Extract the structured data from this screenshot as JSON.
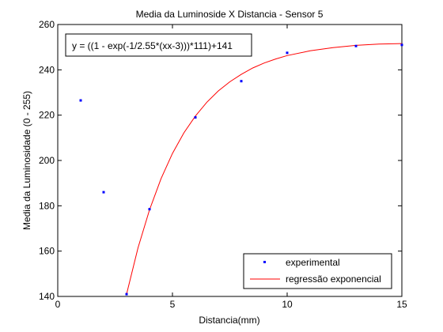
{
  "chart_data": {
    "type": "scatter",
    "title": "Media da Luminoside X Distancia - Sensor 5",
    "xlabel": "Distancia(mm)",
    "ylabel": "Media da Luminosidade (0 - 255)",
    "xlim": [
      0,
      15
    ],
    "ylim": [
      140,
      260
    ],
    "xticks": [
      0,
      5,
      10,
      15
    ],
    "yticks": [
      140,
      160,
      180,
      200,
      220,
      240,
      260
    ],
    "grid": false,
    "legend_position": "bottom-right",
    "annotation": "y = ((1 - exp(-1/2.55*(xx-3)))*111)+141",
    "series": [
      {
        "name": "experimental",
        "kind": "points",
        "color": "#0000ff",
        "x": [
          1,
          2,
          3,
          4,
          6,
          8,
          10,
          13,
          15
        ],
        "y": [
          226.5,
          186,
          141,
          178.5,
          219,
          235,
          247.5,
          250.5,
          251
        ]
      },
      {
        "name": "regressão exponencial",
        "kind": "curve",
        "color": "#ff0000",
        "x": [
          3,
          3.5,
          4,
          4.5,
          5,
          5.5,
          6,
          6.5,
          7,
          7.5,
          8,
          8.5,
          9,
          9.5,
          10,
          11,
          12,
          13,
          14,
          15
        ],
        "y": [
          141,
          161.5,
          178.2,
          191.9,
          203.1,
          212.2,
          219.6,
          225.7,
          230.7,
          234.7,
          238.0,
          240.8,
          243.0,
          244.8,
          246.3,
          248.4,
          249.8,
          250.8,
          251.4,
          251.6
        ]
      }
    ]
  }
}
